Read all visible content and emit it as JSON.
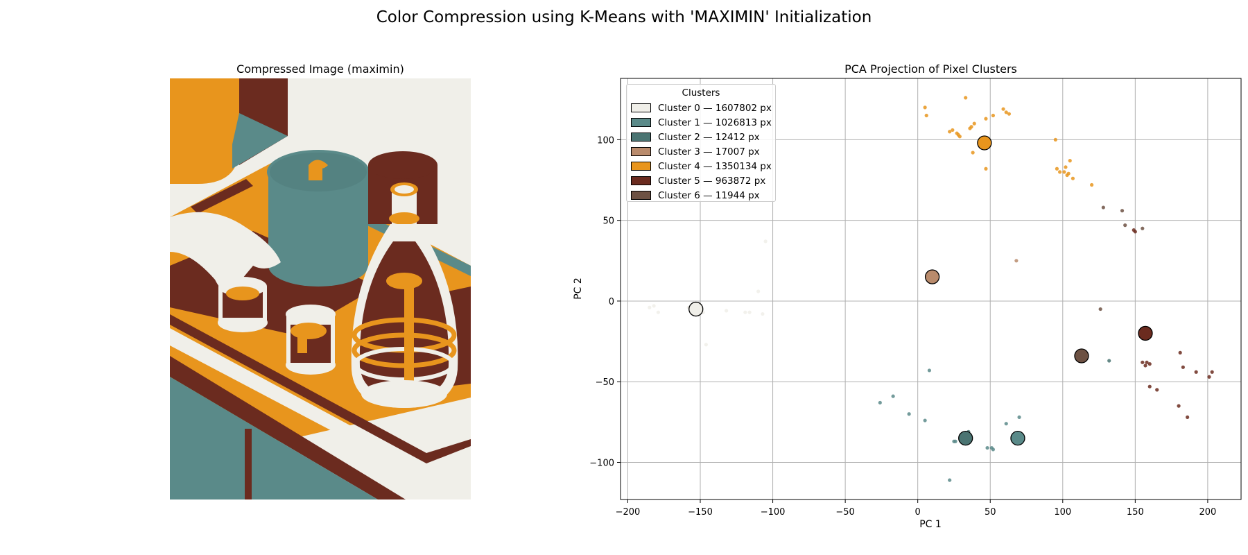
{
  "figure": {
    "suptitle": "Color Compression using K-Means with 'MAXIMIN' Initialization"
  },
  "image_panel": {
    "title": "Compressed Image (maximin)",
    "depiction": "isometric-kitchen-illustration"
  },
  "chart_data": {
    "type": "scatter",
    "title": "PCA Projection of Pixel Clusters",
    "xlabel": "PC 1",
    "ylabel": "PC 2",
    "xlim": [
      -205,
      223
    ],
    "ylim": [
      -123,
      138
    ],
    "xticks": [
      -200,
      -150,
      -100,
      -50,
      0,
      50,
      100,
      150,
      200
    ],
    "yticks": [
      -100,
      -50,
      0,
      50,
      100
    ],
    "xtick_labels": [
      "−200",
      "−150",
      "−100",
      "−50",
      "0",
      "50",
      "100",
      "150",
      "200"
    ],
    "ytick_labels": [
      "−100",
      "−50",
      "0",
      "50",
      "100"
    ],
    "grid": true,
    "legend": {
      "title": "Clusters",
      "position": "top-left"
    },
    "series": [
      {
        "name": "Cluster 0 — 1607802 px",
        "color": "#f0efe9",
        "centroid": [
          -153,
          -5
        ],
        "points": [
          [
            -185,
            -4
          ],
          [
            -182,
            -3
          ],
          [
            -179,
            -7
          ],
          [
            -158,
            -4
          ],
          [
            -148,
            -7
          ],
          [
            -132,
            -6
          ],
          [
            -119,
            -7
          ],
          [
            -116,
            -7
          ],
          [
            -107,
            -8
          ],
          [
            -110,
            6
          ],
          [
            -146,
            -27
          ],
          [
            -105,
            37
          ]
        ]
      },
      {
        "name": "Cluster 1 — 1026813 px",
        "color": "#5a8a89",
        "centroid": [
          69,
          -85
        ],
        "points": [
          [
            -26,
            -63
          ],
          [
            -17,
            -59
          ],
          [
            -6,
            -70
          ],
          [
            5,
            -74
          ],
          [
            8,
            -43
          ],
          [
            22,
            -111
          ],
          [
            25,
            -87
          ],
          [
            26,
            -87
          ],
          [
            48,
            -91
          ],
          [
            51,
            -91
          ],
          [
            52,
            -92
          ],
          [
            61,
            -76
          ],
          [
            70,
            -72
          ]
        ]
      },
      {
        "name": "Cluster 2 — 12412 px",
        "color": "#4a7472",
        "centroid": [
          33,
          -85
        ],
        "points": [
          [
            32,
            -84
          ],
          [
            35,
            -81
          ],
          [
            132,
            -37
          ]
        ]
      },
      {
        "name": "Cluster 3 — 17007 px",
        "color": "#b98b6c",
        "centroid": [
          10,
          15
        ],
        "points": [
          [
            68,
            25
          ]
        ]
      },
      {
        "name": "Cluster 4 — 1350134 px",
        "color": "#e8951d",
        "centroid": [
          46,
          98
        ],
        "points": [
          [
            33,
            126
          ],
          [
            5,
            120
          ],
          [
            6,
            115
          ],
          [
            22,
            105
          ],
          [
            24,
            106
          ],
          [
            27,
            104
          ],
          [
            28,
            103
          ],
          [
            29,
            102
          ],
          [
            36,
            107
          ],
          [
            37,
            108
          ],
          [
            38,
            92
          ],
          [
            39,
            110
          ],
          [
            47,
            113
          ],
          [
            47,
            82
          ],
          [
            52,
            115
          ],
          [
            59,
            119
          ],
          [
            61,
            117
          ],
          [
            63,
            116
          ],
          [
            95,
            100
          ],
          [
            96,
            82
          ],
          [
            98,
            80
          ],
          [
            101,
            80
          ],
          [
            102,
            83
          ],
          [
            103,
            78
          ],
          [
            104,
            79
          ],
          [
            105,
            87
          ],
          [
            107,
            76
          ],
          [
            120,
            72
          ]
        ]
      },
      {
        "name": "Cluster 5 — 963872 px",
        "color": "#6b2b1f",
        "centroid": [
          157,
          -20
        ],
        "points": [
          [
            150,
            43
          ],
          [
            149,
            44
          ],
          [
            155,
            -38
          ],
          [
            157,
            -40
          ],
          [
            158,
            -38
          ],
          [
            160,
            -39
          ],
          [
            160,
            -53
          ],
          [
            165,
            -55
          ],
          [
            180,
            -65
          ],
          [
            186,
            -72
          ],
          [
            201,
            -47
          ],
          [
            203,
            -44
          ],
          [
            192,
            -44
          ],
          [
            183,
            -41
          ],
          [
            181,
            -32
          ]
        ]
      },
      {
        "name": "Cluster 6 — 11944 px",
        "color": "#6d5143",
        "centroid": [
          113,
          -34
        ],
        "points": [
          [
            128,
            58
          ],
          [
            141,
            56
          ],
          [
            143,
            47
          ],
          [
            155,
            45
          ],
          [
            126,
            -5
          ]
        ]
      }
    ]
  }
}
